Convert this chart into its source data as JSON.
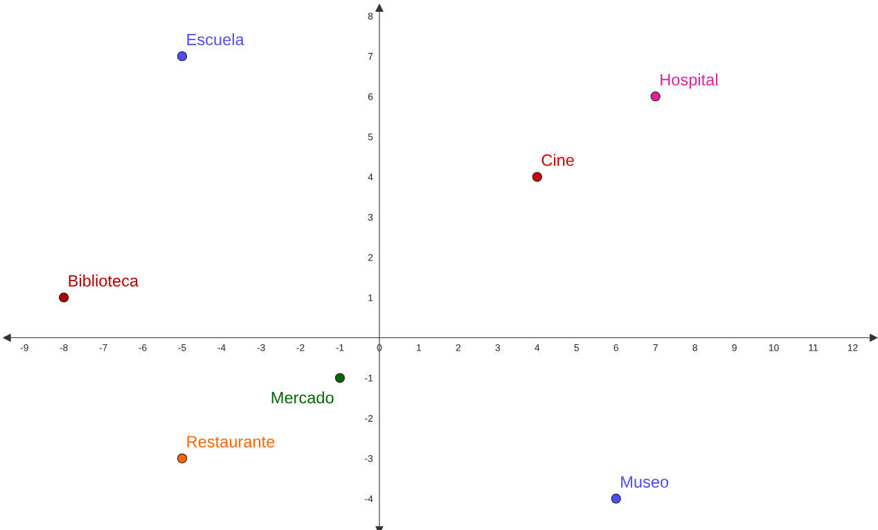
{
  "chart_data": {
    "type": "scatter",
    "xlim": [
      -9.44,
      12.53
    ],
    "ylim": [
      -4.78,
      8.2
    ],
    "xticks": [
      -9,
      -8,
      -7,
      -6,
      -5,
      -4,
      -3,
      -2,
      -1,
      0,
      1,
      2,
      3,
      4,
      5,
      6,
      7,
      8,
      9,
      10,
      11,
      12
    ],
    "yticks": [
      -4,
      -3,
      -2,
      -1,
      1,
      2,
      3,
      4,
      5,
      6,
      7,
      8
    ],
    "grid": false,
    "legend": false,
    "marker": "circle",
    "series": [
      {
        "name": "Escuela",
        "color": "#4d4dff",
        "x": [
          -5
        ],
        "values": [
          7
        ]
      },
      {
        "name": "Hospital",
        "color": "#e0219a",
        "x": [
          7
        ],
        "values": [
          6
        ]
      },
      {
        "name": "Cine",
        "color": "#cc0000",
        "x": [
          4
        ],
        "values": [
          4
        ]
      },
      {
        "name": "Biblioteca",
        "color": "#b20000",
        "x": [
          -8
        ],
        "values": [
          1
        ]
      },
      {
        "name": "Mercado",
        "color": "#006400",
        "x": [
          -1
        ],
        "values": [
          -1
        ]
      },
      {
        "name": "Restaurante",
        "color": "#ff6600",
        "x": [
          -5
        ],
        "values": [
          -3
        ]
      },
      {
        "name": "Museo",
        "color": "#4d4dff",
        "x": [
          6
        ],
        "values": [
          -4
        ]
      }
    ]
  }
}
